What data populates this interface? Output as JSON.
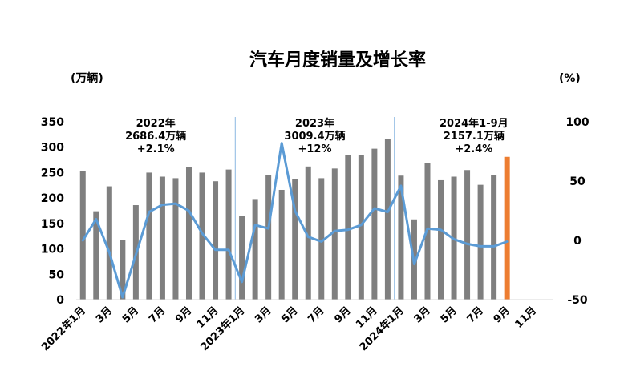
{
  "chart_data": {
    "type": "bar",
    "title": "汽车月度销量及增长率",
    "left_unit": "(万辆)",
    "right_unit": "(%)",
    "colors": {
      "bar": "#7f7f7f",
      "highlight_bar": "#ed7d31",
      "line": "#5b9bd5",
      "divider": "#9dc3e6"
    },
    "x_tick_labels": [
      "2022年1月",
      "3月",
      "5月",
      "7月",
      "9月",
      "11月",
      "2023年1月",
      "3月",
      "5月",
      "7月",
      "9月",
      "11月",
      "2024年1月",
      "3月",
      "5月",
      "7月",
      "9月",
      "11月"
    ],
    "x_tick_months": [
      0,
      2,
      4,
      6,
      8,
      10,
      12,
      14,
      16,
      18,
      20,
      22,
      24,
      26,
      28,
      30,
      32,
      34
    ],
    "months_total": 36,
    "left_axis": {
      "min": 0,
      "max": 350,
      "ticks": [
        "0",
        "50",
        "100",
        "150",
        "200",
        "250",
        "300",
        "350"
      ]
    },
    "right_axis": {
      "min": -50,
      "max": 100,
      "ticks": [
        "-50",
        "0",
        "50",
        "100"
      ]
    },
    "series": [
      {
        "name": "销量",
        "kind": "bar",
        "axis": "left",
        "values": [
          253,
          174,
          223,
          118,
          186,
          250,
          242,
          239,
          261,
          250,
          233,
          256,
          165,
          198,
          245,
          216,
          238,
          262,
          239,
          258,
          285,
          285,
          297,
          316,
          244,
          158,
          269,
          235,
          242,
          255,
          226,
          245,
          281
        ]
      },
      {
        "name": "增长率",
        "kind": "line",
        "axis": "right",
        "values": [
          0,
          18,
          -10,
          -48,
          -12,
          24,
          30,
          31,
          25,
          6,
          -8,
          -8,
          -35,
          13,
          10,
          82,
          25,
          3,
          -1,
          8,
          9,
          13,
          27,
          24,
          46,
          -20,
          10,
          9,
          1,
          -3,
          -5,
          -5,
          -1
        ]
      }
    ],
    "highlight_index": 32,
    "period_dividers_after_month": [
      11.5,
      23.5
    ],
    "annotations": [
      {
        "lines": [
          "2022年",
          "2686.4万辆",
          "+2.1%"
        ],
        "center_month": 5.5
      },
      {
        "lines": [
          "2023年",
          "3009.4万辆",
          "+12%"
        ],
        "center_month": 17.5
      },
      {
        "lines": [
          "2024年1-9月",
          "2157.1万辆",
          "+2.4%"
        ],
        "center_month": 29.5
      }
    ]
  }
}
